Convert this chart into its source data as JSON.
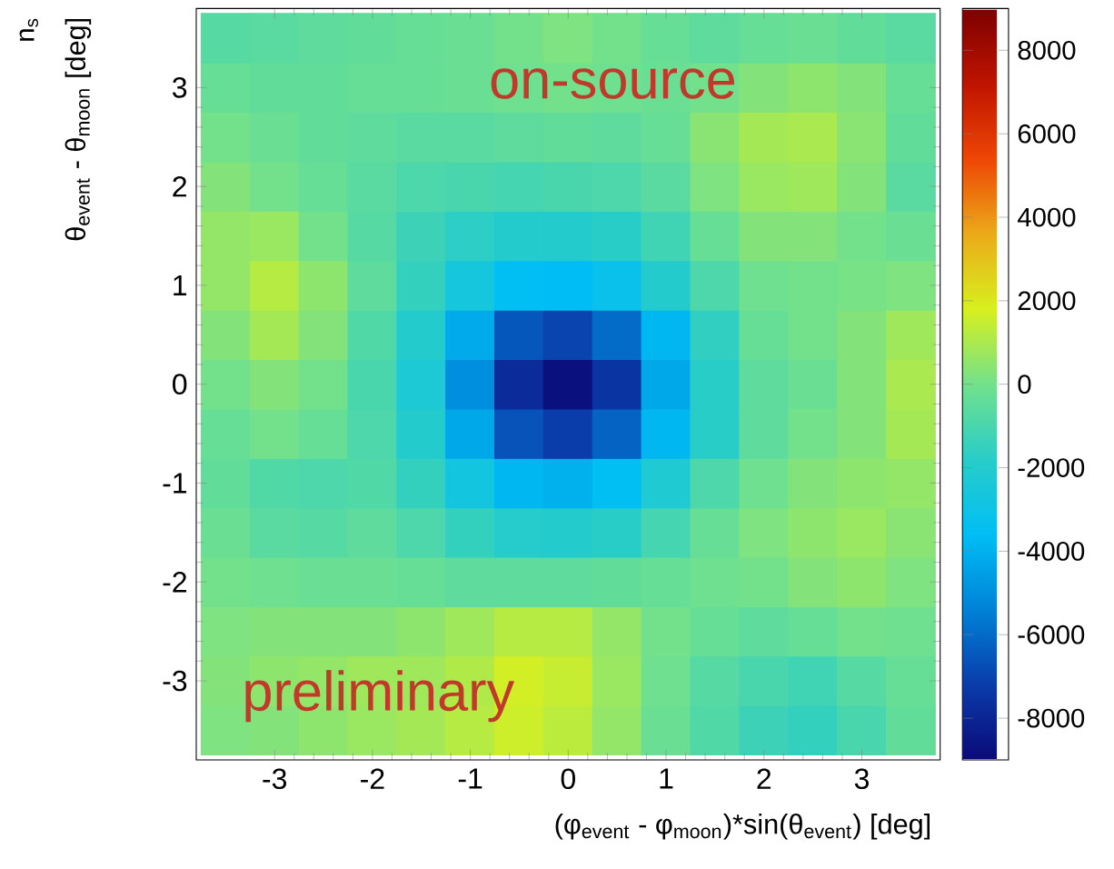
{
  "chart_data": {
    "type": "heatmap",
    "clabel": "n$_{s}$",
    "xlabel": "(φ$_{event}$ - φ$_{moon}$)*sin(θ$_{event}$) [deg]",
    "ylabel": "θ$_{event}$ - θ$_{moon}$ [deg]",
    "annotations": [
      "on-source",
      "preliminary"
    ],
    "x": [
      -3.5,
      -3,
      -2.5,
      -2,
      -1.5,
      -1,
      -0.5,
      0,
      0.5,
      1,
      1.5,
      2,
      2.5,
      3,
      3.5
    ],
    "y": [
      3.5,
      3,
      2.5,
      2,
      1.5,
      1,
      0.5,
      0,
      -0.5,
      -1,
      -1.5,
      -2,
      -2.5,
      -3,
      -3.5
    ],
    "cells": [
      [
        -700,
        -600,
        -500,
        -400,
        -300,
        -200,
        0,
        200,
        0,
        -300,
        -500,
        -300,
        -200,
        -400,
        -600
      ],
      [
        -300,
        -400,
        -400,
        -300,
        -300,
        -200,
        -100,
        0,
        -100,
        -200,
        0,
        300,
        500,
        300,
        -300
      ],
      [
        0,
        -200,
        -400,
        -500,
        -600,
        -600,
        -500,
        -400,
        -500,
        -300,
        400,
        900,
        1000,
        400,
        -400
      ],
      [
        300,
        0,
        -300,
        -600,
        -900,
        -1000,
        -1100,
        -1000,
        -900,
        -600,
        200,
        700,
        800,
        300,
        -600
      ],
      [
        600,
        700,
        0,
        -700,
        -1300,
        -1700,
        -2000,
        -2000,
        -1800,
        -1200,
        -300,
        300,
        300,
        0,
        -200
      ],
      [
        600,
        1200,
        500,
        -500,
        -1500,
        -2600,
        -3500,
        -3600,
        -3200,
        -2000,
        -900,
        -100,
        0,
        100,
        200
      ],
      [
        300,
        900,
        300,
        -800,
        -2000,
        -4200,
        -6500,
        -7000,
        -6000,
        -3800,
        -1600,
        -300,
        0,
        300,
        800
      ],
      [
        0,
        300,
        0,
        -1000,
        -2300,
        -5000,
        -7800,
        -8800,
        -7500,
        -4300,
        -1800,
        -500,
        -200,
        300,
        1000
      ],
      [
        -300,
        0,
        -300,
        -900,
        -2000,
        -4300,
        -6600,
        -7200,
        -6200,
        -3800,
        -1800,
        -500,
        0,
        300,
        900
      ],
      [
        -400,
        -800,
        -900,
        -800,
        -1500,
        -2700,
        -3800,
        -4000,
        -3500,
        -2200,
        -900,
        -100,
        300,
        500,
        600
      ],
      [
        -200,
        -600,
        -700,
        -500,
        -900,
        -1500,
        -1900,
        -2000,
        -1800,
        -1100,
        -300,
        200,
        500,
        700,
        400
      ],
      [
        0,
        -100,
        -200,
        -200,
        -300,
        -500,
        -500,
        -500,
        -400,
        -300,
        -100,
        0,
        300,
        500,
        200
      ],
      [
        200,
        300,
        300,
        300,
        500,
        800,
        1200,
        1200,
        600,
        0,
        -300,
        -500,
        -300,
        0,
        -100
      ],
      [
        300,
        500,
        600,
        800,
        800,
        1100,
        1700,
        1500,
        700,
        -100,
        -700,
        -1000,
        -1200,
        -700,
        -300
      ],
      [
        200,
        300,
        500,
        700,
        900,
        1200,
        1600,
        1300,
        600,
        -200,
        -800,
        -1300,
        -1500,
        -1000,
        -400
      ]
    ],
    "xlim": [
      -3.8,
      3.8
    ],
    "ylim": [
      -3.8,
      3.8
    ],
    "xticks": [
      -3,
      -2,
      -1,
      0,
      1,
      2,
      3
    ],
    "yticks": [
      -3,
      -2,
      -1,
      0,
      1,
      2,
      3
    ],
    "clim": [
      -9000,
      9000
    ],
    "cticks": [
      -8000,
      -6000,
      -4000,
      -2000,
      0,
      2000,
      4000,
      6000,
      8000
    ]
  }
}
